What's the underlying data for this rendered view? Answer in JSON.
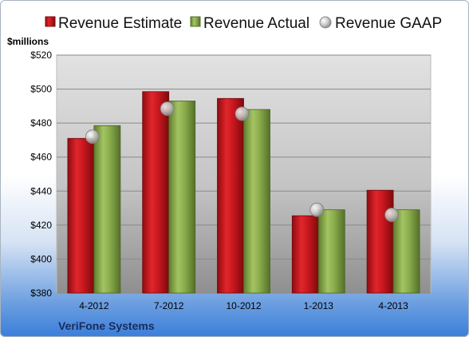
{
  "chart_data": {
    "type": "bar",
    "company": "VeriFone Systems",
    "unit_label": "$millions",
    "categories": [
      "4-2012",
      "7-2012",
      "10-2012",
      "1-2013",
      "4-2013"
    ],
    "series": [
      {
        "name": "Revenue Estimate",
        "kind": "bar",
        "color": "#c8171e",
        "values": [
          471,
          498.5,
          494.5,
          425.5,
          440.5
        ]
      },
      {
        "name": "Revenue Actual",
        "kind": "bar",
        "color": "#8aac4a",
        "values": [
          478.5,
          493,
          488,
          429,
          429
        ]
      },
      {
        "name": "Revenue GAAP",
        "kind": "point",
        "color": "#bfbfbf",
        "values": [
          472,
          488.5,
          485.5,
          429,
          426
        ]
      }
    ],
    "y_ticks": [
      "$380",
      "$400",
      "$420",
      "$440",
      "$460",
      "$480",
      "$500",
      "$520"
    ],
    "y_tick_values": [
      380,
      400,
      420,
      440,
      460,
      480,
      500,
      520
    ],
    "ylim": [
      380,
      520
    ],
    "grid": true,
    "legend_position": "top"
  }
}
